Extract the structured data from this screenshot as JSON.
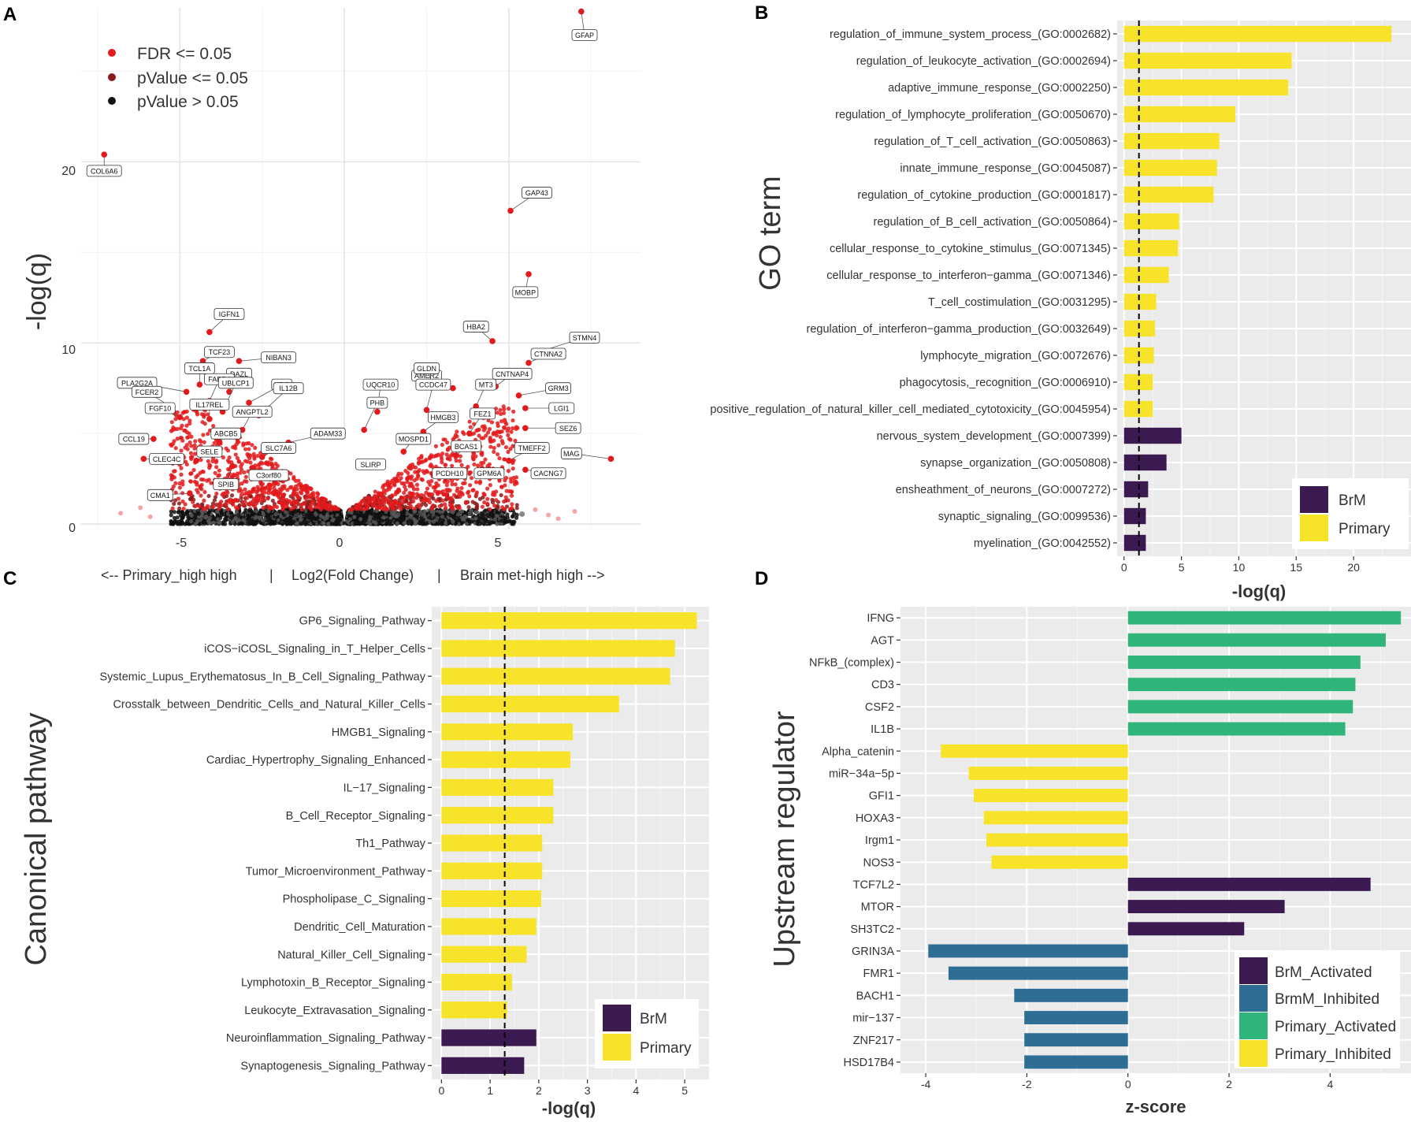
{
  "panels": [
    {
      "letter": "A",
      "type": "scatter",
      "ylabel": "-log(q)",
      "xlabel_left": "<-- Primary_high high",
      "xlabel_center": "Log2(Fold Change)",
      "xlabel_right": "Brain met-high high -->",
      "xlabel_sep": "|",
      "xticks": [
        "-5",
        "0",
        "5"
      ],
      "yticks": [
        "0",
        "10",
        "20"
      ],
      "legend": [
        {
          "label": "FDR <= 0.05",
          "color": "#e31a1c"
        },
        {
          "label": "pValue <= 0.05",
          "color": "#8b1a1a"
        },
        {
          "label": "pValue > 0.05",
          "color": "#111111"
        }
      ]
    },
    {
      "letter": "B",
      "type": "bar",
      "ylabel": "GO term",
      "xlabel": "-log(q)",
      "xticks": [
        "0",
        "5",
        "10",
        "15",
        "20"
      ],
      "legend": [
        {
          "label": "BrM",
          "color": "#3b1a52"
        },
        {
          "label": "Primary",
          "color": "#f7e32a"
        }
      ]
    },
    {
      "letter": "C",
      "type": "bar",
      "ylabel": "Canonical pathway",
      "xlabel": "-log(q)",
      "xticks": [
        "0",
        "1",
        "2",
        "3",
        "4",
        "5"
      ],
      "legend": [
        {
          "label": "BrM",
          "color": "#3b1a52"
        },
        {
          "label": "Primary",
          "color": "#f7e32a"
        }
      ]
    },
    {
      "letter": "D",
      "type": "bar",
      "ylabel": "Upstream regulator",
      "xlabel": "z-score",
      "xticks": [
        "-4",
        "-2",
        "0",
        "2",
        "4"
      ],
      "legend": [
        {
          "label": "BrM_Activated",
          "color": "#3b1a52"
        },
        {
          "label": "BrmM_Inhibited",
          "color": "#2e6e95"
        },
        {
          "label": "Primary_Activated",
          "color": "#2fb57a"
        },
        {
          "label": "Primary_Inhibited",
          "color": "#f7e32a"
        }
      ]
    }
  ],
  "chart_data": [
    {
      "type": "scatter",
      "title": "",
      "xlabel": "Log2(Fold Change)",
      "ylabel": "-log(q)",
      "xlim": [
        -8,
        9
      ],
      "ylim": [
        -0.3,
        28.5
      ],
      "labeled_points": [
        {
          "label": "GFAP",
          "x": 7.2,
          "y": 28.3
        },
        {
          "label": "COL6A6",
          "x": -7.3,
          "y": 20.4
        },
        {
          "label": "GAP43",
          "x": 5.05,
          "y": 17.3
        },
        {
          "label": "MOBP",
          "x": 5.6,
          "y": 13.8
        },
        {
          "label": "IGFN1",
          "x": -4.1,
          "y": 10.6
        },
        {
          "label": "TCF23",
          "x": -4.3,
          "y": 9.0
        },
        {
          "label": "NIBAN3",
          "x": -3.2,
          "y": 9.0
        },
        {
          "label": "HBA2",
          "x": 4.5,
          "y": 10.1
        },
        {
          "label": "STMN4",
          "x": 5.9,
          "y": 9.5
        },
        {
          "label": "CTNNA2",
          "x": 5.6,
          "y": 8.9
        },
        {
          "label": "PLA2G2A",
          "x": -4.8,
          "y": 7.3
        },
        {
          "label": "TCL1A",
          "x": -4.4,
          "y": 7.7
        },
        {
          "label": "AMER2",
          "x": 3.3,
          "y": 7.5
        },
        {
          "label": "CNTNAP4",
          "x": 4.6,
          "y": 7.6
        },
        {
          "label": "GLDN",
          "x": 2.7,
          "y": 7.6
        },
        {
          "label": "DAZL",
          "x": -3.5,
          "y": 7.3
        },
        {
          "label": "HDC",
          "x": -2.9,
          "y": 6.7
        },
        {
          "label": "FABP4",
          "x": -4.1,
          "y": 6.8
        },
        {
          "label": "GRM3",
          "x": 5.3,
          "y": 7.1
        },
        {
          "label": "FCER2",
          "x": -5.3,
          "y": 6.5
        },
        {
          "label": "MT3",
          "x": 4.0,
          "y": 6.5
        },
        {
          "label": "CCDC47",
          "x": 2.5,
          "y": 6.3
        },
        {
          "label": "UBLCP1",
          "x": -3.7,
          "y": 6.2
        },
        {
          "label": "IL12B",
          "x": -2.6,
          "y": 6.0
        },
        {
          "label": "UQCR10",
          "x": 1.0,
          "y": 6.2
        },
        {
          "label": "LGI1",
          "x": 5.5,
          "y": 6.4
        },
        {
          "label": "FGF10",
          "x": -5.0,
          "y": 5.9
        },
        {
          "label": "HMGB3",
          "x": 2.4,
          "y": 5.1
        },
        {
          "label": "FEZ1",
          "x": 3.8,
          "y": 5.0
        },
        {
          "label": "IL17REL",
          "x": -4.1,
          "y": 5.8
        },
        {
          "label": "ANGPTL2",
          "x": -3.1,
          "y": 5.2
        },
        {
          "label": "PHB",
          "x": 0.6,
          "y": 5.2
        },
        {
          "label": "SEZ6",
          "x": 5.5,
          "y": 5.3
        },
        {
          "label": "CCL19",
          "x": -5.8,
          "y": 4.7
        },
        {
          "label": "ADAM33",
          "x": -1.7,
          "y": 4.5
        },
        {
          "label": "MAG",
          "x": 8.1,
          "y": 3.6
        },
        {
          "label": "ABCB5",
          "x": -3.8,
          "y": 4.5
        },
        {
          "label": "CLEC4C",
          "x": -6.1,
          "y": 3.6
        },
        {
          "label": "SELE",
          "x": -4.5,
          "y": 3.5
        },
        {
          "label": "SLC7A6",
          "x": -2.5,
          "y": 3.7
        },
        {
          "label": "MOSPD1",
          "x": 1.8,
          "y": 4.0
        },
        {
          "label": "BCAS1",
          "x": 3.4,
          "y": 3.8
        },
        {
          "label": "TMEFF2",
          "x": 5.0,
          "y": 3.5
        },
        {
          "label": "SLIRP",
          "x": 0.7,
          "y": 3.4
        },
        {
          "label": "SPIB",
          "x": -3.4,
          "y": 3.2
        },
        {
          "label": "C3orf80",
          "x": -2.8,
          "y": 3.1
        },
        {
          "label": "PCDH10",
          "x": 2.9,
          "y": 3.0
        },
        {
          "label": "GPM6A",
          "x": 4.2,
          "y": 3.0
        },
        {
          "label": "CACNG7",
          "x": 5.5,
          "y": 3.0
        },
        {
          "label": "CMA1",
          "x": -4.7,
          "y": 1.7
        }
      ]
    },
    {
      "type": "bar",
      "orientation": "horizontal",
      "xlabel": "-log(q)",
      "ylabel": "GO term",
      "xlim": [
        -0.6,
        25.0
      ],
      "threshold": 1.3,
      "categories": [
        "regulation_of_immune_system_process_(GO:0002682)",
        "regulation_of_leukocyte_activation_(GO:0002694)",
        "adaptive_immune_response_(GO:0002250)",
        "regulation_of_lymphocyte_proliferation_(GO:0050670)",
        "regulation_of_T_cell_activation_(GO:0050863)",
        "innate_immune_response_(GO:0045087)",
        "regulation_of_cytokine_production_(GO:0001817)",
        "regulation_of_B_cell_activation_(GO:0050864)",
        "cellular_response_to_cytokine_stimulus_(GO:0071345)",
        "cellular_response_to_interferon−gamma_(GO:0071346)",
        "T_cell_costimulation_(GO:0031295)",
        "regulation_of_interferon−gamma_production_(GO:0032649)",
        "lymphocyte_migration_(GO:0072676)",
        "phagocytosis,_recognition_(GO:0006910)",
        "positive_regulation_of_natural_killer_cell_mediated_cytotoxicity_(GO:0045954)",
        "nervous_system_development_(GO:0007399)",
        "synapse_organization_(GO:0050808)",
        "ensheathment_of_neurons_(GO:0007272)",
        "synaptic_signaling_(GO:0099536)",
        "myelination_(GO:0042552)"
      ],
      "values": [
        23.3,
        14.6,
        14.3,
        9.7,
        8.3,
        8.1,
        7.8,
        4.8,
        4.7,
        3.9,
        2.8,
        2.7,
        2.6,
        2.5,
        2.5,
        5.0,
        3.7,
        2.1,
        1.9,
        1.9
      ],
      "groups": [
        "Primary",
        "Primary",
        "Primary",
        "Primary",
        "Primary",
        "Primary",
        "Primary",
        "Primary",
        "Primary",
        "Primary",
        "Primary",
        "Primary",
        "Primary",
        "Primary",
        "Primary",
        "BrM",
        "BrM",
        "BrM",
        "BrM",
        "BrM"
      ]
    },
    {
      "type": "bar",
      "orientation": "horizontal",
      "xlabel": "-log(q)",
      "ylabel": "Canonical pathway",
      "xlim": [
        -0.2,
        5.5
      ],
      "threshold": 1.3,
      "categories": [
        "GP6_Signaling_Pathway",
        "iCOS−iCOSL_Signaling_in_T_Helper_Cells",
        "Systemic_Lupus_Erythematosus_In_B_Cell_Signaling_Pathway",
        "Crosstalk_between_Dendritic_Cells_and_Natural_Killer_Cells",
        "HMGB1_Signaling",
        "Cardiac_Hypertrophy_Signaling_Enhanced",
        "IL−17_Signaling",
        "B_Cell_Receptor_Signaling",
        "Th1_Pathway",
        "Tumor_Microenvironment_Pathway",
        "Phospholipase_C_Signaling",
        "Dendritic_Cell_Maturation",
        "Natural_Killer_Cell_Signaling",
        "Lymphotoxin_B_Receptor_Signaling",
        "Leukocyte_Extravasation_Signaling",
        "Neuroinflammation_Signaling_Pathway",
        "Synaptogenesis_Signaling_Pathway"
      ],
      "values": [
        5.25,
        4.8,
        4.7,
        3.65,
        2.7,
        2.65,
        2.3,
        2.3,
        2.07,
        2.07,
        2.05,
        1.95,
        1.75,
        1.45,
        1.35,
        1.95,
        1.7
      ],
      "groups": [
        "Primary",
        "Primary",
        "Primary",
        "Primary",
        "Primary",
        "Primary",
        "Primary",
        "Primary",
        "Primary",
        "Primary",
        "Primary",
        "Primary",
        "Primary",
        "Primary",
        "Primary",
        "BrM",
        "BrM"
      ]
    },
    {
      "type": "bar",
      "orientation": "horizontal",
      "xlabel": "z-score",
      "ylabel": "Upstream regulator",
      "xlim": [
        -4.5,
        5.6
      ],
      "categories": [
        "IFNG",
        "AGT",
        "NFkB_(complex)",
        "CD3",
        "CSF2",
        "IL1B",
        "Alpha_catenin",
        "miR−34a−5p",
        "GFI1",
        "HOXA3",
        "Irgm1",
        "NOS3",
        "TCF7L2",
        "MTOR",
        "SH3TC2",
        "GRIN3A",
        "FMR1",
        "BACH1",
        "mir−137",
        "ZNF217",
        "HSD17B4"
      ],
      "values": [
        5.4,
        5.1,
        4.6,
        4.5,
        4.45,
        4.3,
        -3.7,
        -3.15,
        -3.05,
        -2.85,
        -2.8,
        -2.7,
        4.8,
        3.1,
        2.3,
        -3.95,
        -3.55,
        -2.25,
        -2.05,
        -2.05,
        -2.05
      ],
      "groups": [
        "Primary_Activated",
        "Primary_Activated",
        "Primary_Activated",
        "Primary_Activated",
        "Primary_Activated",
        "Primary_Activated",
        "Primary_Inhibited",
        "Primary_Inhibited",
        "Primary_Inhibited",
        "Primary_Inhibited",
        "Primary_Inhibited",
        "Primary_Inhibited",
        "BrM_Activated",
        "BrM_Activated",
        "BrM_Activated",
        "BrmM_Inhibited",
        "BrmM_Inhibited",
        "BrmM_Inhibited",
        "BrmM_Inhibited",
        "BrmM_Inhibited",
        "BrmM_Inhibited"
      ]
    }
  ]
}
